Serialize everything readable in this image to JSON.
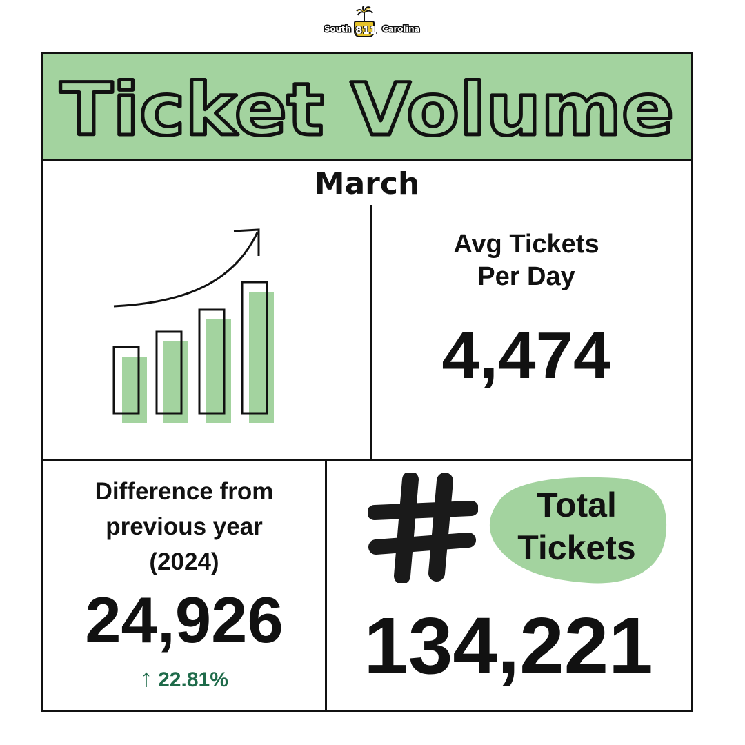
{
  "logo": {
    "left_text": "South",
    "number": "811",
    "right_text": "Carolina"
  },
  "banner": {
    "title": "Ticket Volume"
  },
  "month": "March",
  "avg": {
    "label_line1": "Avg Tickets",
    "label_line2": "Per Day",
    "value": "4,474"
  },
  "difference": {
    "label_line1": "Difference from",
    "label_line2": "previous year",
    "label_line3": "(2024)",
    "value": "24,926",
    "arrow": "↑",
    "percent": "22.81%"
  },
  "total": {
    "label_line1": "Total",
    "label_line2": "Tickets",
    "value": "134,221"
  },
  "colors": {
    "accent_green": "#a3d39f",
    "dark_green": "#1f6b4a",
    "ink": "#111111",
    "logo_gold": "#e6c32a"
  },
  "icons": [
    "palmetto-tree-icon",
    "growth-chart-icon",
    "hashtag-icon"
  ]
}
